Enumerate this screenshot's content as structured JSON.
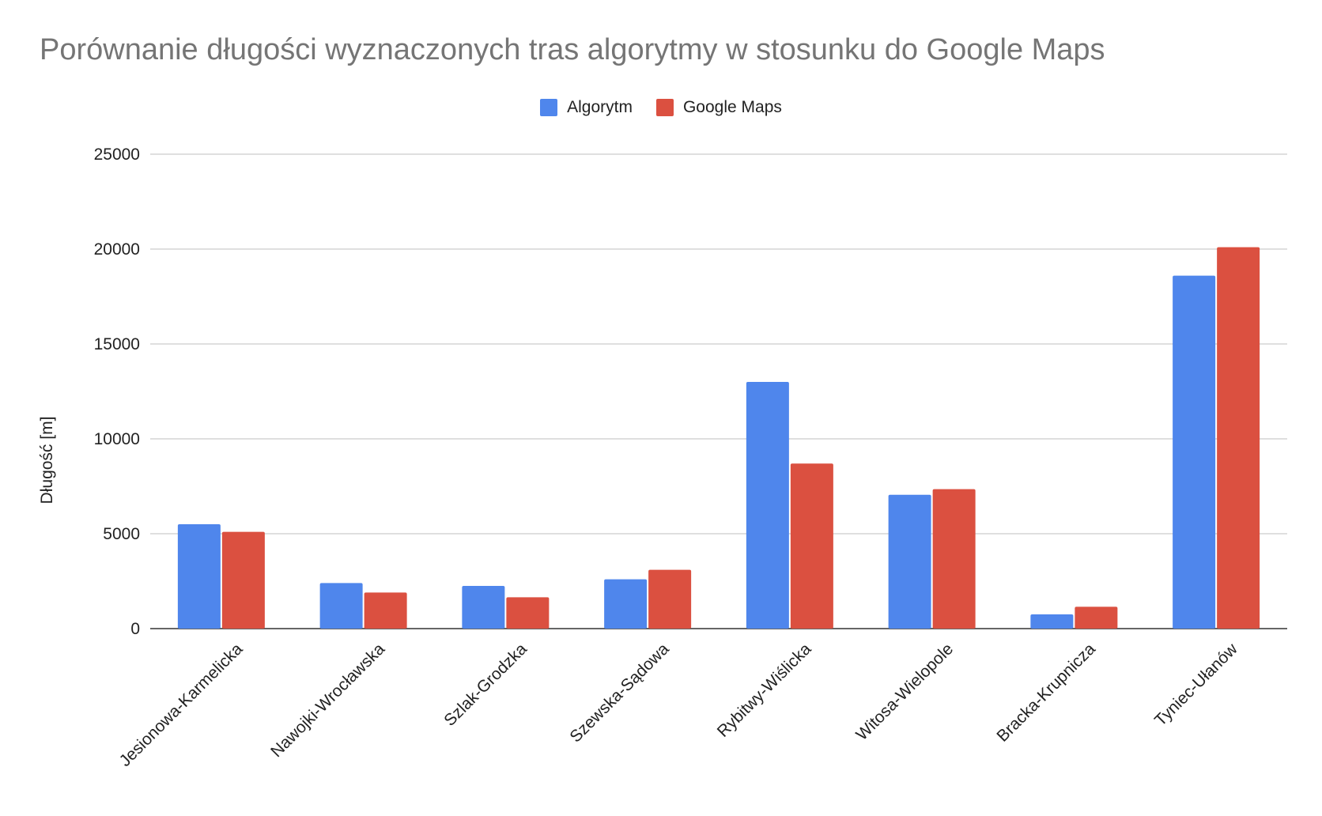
{
  "chart_data": {
    "type": "bar",
    "title": "Porównanie długości wyznaczonych tras algorytmy w stosunku do Google Maps",
    "xlabel": "",
    "ylabel": "Długość [m]",
    "ylim": [
      0,
      25000
    ],
    "yticks": [
      "0",
      "5000",
      "10000",
      "15000",
      "20000",
      "25000"
    ],
    "legend_position": "top-center",
    "grid": true,
    "categories": [
      "Jesionowa-Karmelicka",
      "Nawojki-Wrocławska",
      "Szlak-Grodzka",
      "Szewska-Sądowa",
      "Rybitwy-Wiślicka",
      "Witosa-Wielopole",
      "Bracka-Krupnicza",
      "Tyniec-Ułanów"
    ],
    "series": [
      {
        "name": "Algorytm",
        "color": "#4f86ec",
        "values": [
          5500,
          2400,
          2250,
          2600,
          13000,
          7050,
          750,
          18600
        ]
      },
      {
        "name": "Google Maps",
        "color": "#db5040",
        "values": [
          5100,
          1900,
          1650,
          3100,
          8700,
          7350,
          1150,
          20100
        ]
      }
    ]
  }
}
